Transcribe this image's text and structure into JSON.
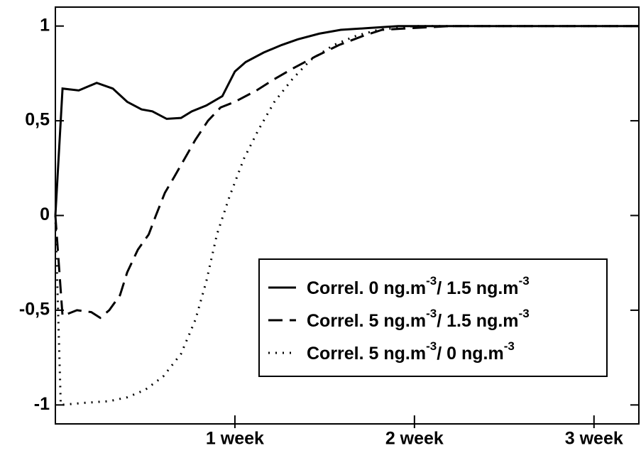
{
  "chart_data": {
    "type": "line",
    "xlim": [
      0,
      3.25
    ],
    "ylim": [
      -1.1,
      1.1
    ],
    "xticks": [
      {
        "value": 1,
        "label": "1 week"
      },
      {
        "value": 2,
        "label": "2 week"
      },
      {
        "value": 3,
        "label": "3 week"
      }
    ],
    "yticks": [
      1,
      {
        "value": 0.5,
        "label": "0,5"
      },
      0,
      {
        "value": -0.5,
        "label": "-0,5"
      },
      -1
    ],
    "legend": "lower right",
    "series": [
      {
        "name": "Correl.  0 ng.m-3/ 1.5 ng.m-3",
        "color": "#000000",
        "dash": "solid",
        "x": [
          0,
          0.04,
          0.13,
          0.23,
          0.32,
          0.4,
          0.48,
          0.54,
          0.62,
          0.7,
          0.76,
          0.84,
          0.93,
          1.0,
          1.06,
          1.16,
          1.26,
          1.35,
          1.47,
          1.59,
          1.75,
          1.91,
          2.2,
          2.6,
          3.25
        ],
        "values": [
          0,
          0.67,
          0.66,
          0.7,
          0.67,
          0.6,
          0.56,
          0.55,
          0.51,
          0.515,
          0.55,
          0.58,
          0.63,
          0.76,
          0.81,
          0.86,
          0.9,
          0.93,
          0.96,
          0.98,
          0.99,
          1.0,
          1.0,
          1.0,
          1.0
        ]
      },
      {
        "name": "Correl.  5 ng.m-3/ 1.5 ng.m-3",
        "color": "#000000",
        "dash": "dashed",
        "x": [
          0,
          0.04,
          0.12,
          0.2,
          0.25,
          0.3,
          0.36,
          0.4,
          0.46,
          0.52,
          0.56,
          0.61,
          0.66,
          0.72,
          0.78,
          0.85,
          0.92,
          1.0,
          1.12,
          1.22,
          1.33,
          1.45,
          1.58,
          1.72,
          1.82,
          2.0,
          2.2,
          2.6,
          3.25
        ],
        "values": [
          0,
          -0.53,
          -0.5,
          -0.51,
          -0.54,
          -0.5,
          -0.42,
          -0.3,
          -0.18,
          -0.1,
          0.0,
          0.12,
          0.2,
          0.3,
          0.4,
          0.5,
          0.57,
          0.6,
          0.66,
          0.72,
          0.78,
          0.84,
          0.9,
          0.95,
          0.98,
          0.99,
          1.0,
          1.0,
          1.0
        ]
      },
      {
        "name": "Correl.  5 ng.m-3/ 0 ng.m-3",
        "color": "#000000",
        "dash": "dotted",
        "x": [
          0,
          0.03,
          0.15,
          0.3,
          0.4,
          0.5,
          0.6,
          0.7,
          0.78,
          0.84,
          0.9,
          0.97,
          1.05,
          1.13,
          1.22,
          1.32,
          1.42,
          1.55,
          1.68,
          1.8,
          2.0,
          2.2,
          2.6,
          3.25
        ],
        "values": [
          0,
          -1.0,
          -0.99,
          -0.98,
          -0.96,
          -0.92,
          -0.85,
          -0.73,
          -0.55,
          -0.35,
          -0.1,
          0.1,
          0.3,
          0.45,
          0.6,
          0.72,
          0.82,
          0.9,
          0.95,
          0.98,
          1.0,
          1.0,
          1.0,
          1.0
        ]
      }
    ]
  }
}
